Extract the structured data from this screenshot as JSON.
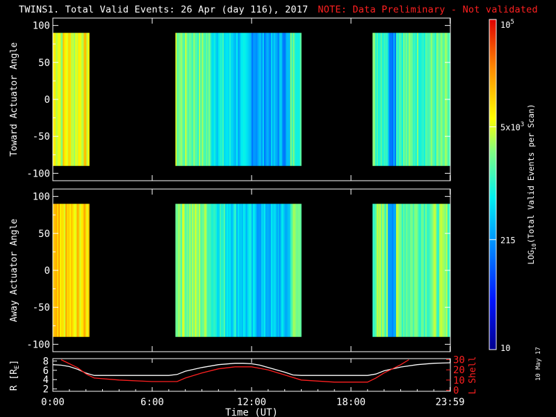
{
  "title": "TWINS1. Total Valid Events: 26 Apr (day 116), 2017",
  "note": "NOTE: Data Preliminary - Not validated",
  "date_stamp": "10 May 17",
  "colors": {
    "note": "#ff2020",
    "r_line": "#ffffff",
    "lshell_line": "#ff2020"
  },
  "chart_data": [
    {
      "type": "heatmap",
      "ylabel": "Toward Actuator Angle",
      "xlim": [
        0,
        24
      ],
      "ylim": [
        -110,
        110
      ],
      "yticks": [
        100,
        50,
        0,
        -50,
        -100
      ],
      "coverage_hours": [
        [
          0.0,
          2.2
        ],
        [
          7.4,
          15.0
        ],
        [
          19.3,
          23.99
        ]
      ],
      "angle_range": [
        -90,
        90
      ]
    },
    {
      "type": "heatmap",
      "ylabel": "Away Actuator Angle",
      "xlim": [
        0,
        24
      ],
      "ylim": [
        -110,
        110
      ],
      "yticks": [
        100,
        50,
        0,
        -50,
        -100
      ],
      "coverage_hours": [
        [
          0.0,
          2.2
        ],
        [
          7.4,
          15.0
        ],
        [
          19.3,
          23.99
        ]
      ],
      "angle_range": [
        -90,
        90
      ]
    },
    {
      "type": "line",
      "xlabel": "Time (UT)",
      "xticks": [
        "0:00",
        "6:00",
        "12:00",
        "18:00",
        "23:59"
      ],
      "xtick_hours": [
        0,
        6,
        12,
        18,
        23.98
      ],
      "xlim": [
        0,
        24
      ],
      "left_axis": {
        "label": "R [R",
        "label_sub": "E",
        "label_end": "]",
        "ticks": [
          2,
          4,
          6,
          8
        ],
        "ylim": [
          1.5,
          8.5
        ]
      },
      "right_axis": {
        "label": "L Shell",
        "ticks": [
          0,
          10,
          20,
          30
        ],
        "ylim": [
          -1,
          31
        ]
      },
      "series": [
        {
          "axis": "left",
          "x": [
            0,
            0.5,
            1,
            1.5,
            2,
            2.5,
            3,
            4,
            5,
            6,
            7,
            7.5,
            8,
            9,
            10,
            11,
            11.5,
            12,
            12.5,
            13,
            14,
            14.5,
            15,
            16,
            17,
            18,
            19,
            19.5,
            20,
            21,
            22,
            23,
            24
          ],
          "y": [
            7.2,
            7.1,
            6.8,
            6.2,
            5.4,
            4.9,
            4.9,
            4.9,
            4.9,
            4.9,
            4.9,
            5.1,
            5.8,
            6.6,
            7.2,
            7.5,
            7.5,
            7.4,
            7.1,
            6.6,
            5.6,
            5.0,
            4.9,
            4.9,
            4.9,
            4.9,
            4.9,
            5.2,
            5.9,
            6.7,
            7.2,
            7.5,
            7.6
          ]
        },
        {
          "axis": "right",
          "x": [
            0.5,
            1.5,
            2,
            2.5,
            4,
            6,
            7.5,
            8,
            9,
            10,
            11,
            12,
            13,
            14,
            15,
            17,
            19,
            19.5,
            20,
            21,
            21.5
          ],
          "y": [
            30,
            22,
            16,
            12,
            10,
            8.5,
            8.5,
            12,
            17,
            21,
            23,
            23,
            20,
            15,
            10,
            8,
            8,
            12,
            17,
            25,
            30
          ]
        }
      ]
    }
  ],
  "colorbar": {
    "label": "LOG",
    "label_sub": "10",
    "label_end": "(Total Valid Events per Scan)",
    "ticks": [
      {
        "text": "10",
        "value": 10
      },
      {
        "text": "215",
        "value": 215
      },
      {
        "text": "5x10",
        "sup": "3",
        "value": 5000
      },
      {
        "text": "10",
        "sup": "5",
        "value": 100000
      }
    ],
    "range": [
      10,
      100000
    ]
  }
}
